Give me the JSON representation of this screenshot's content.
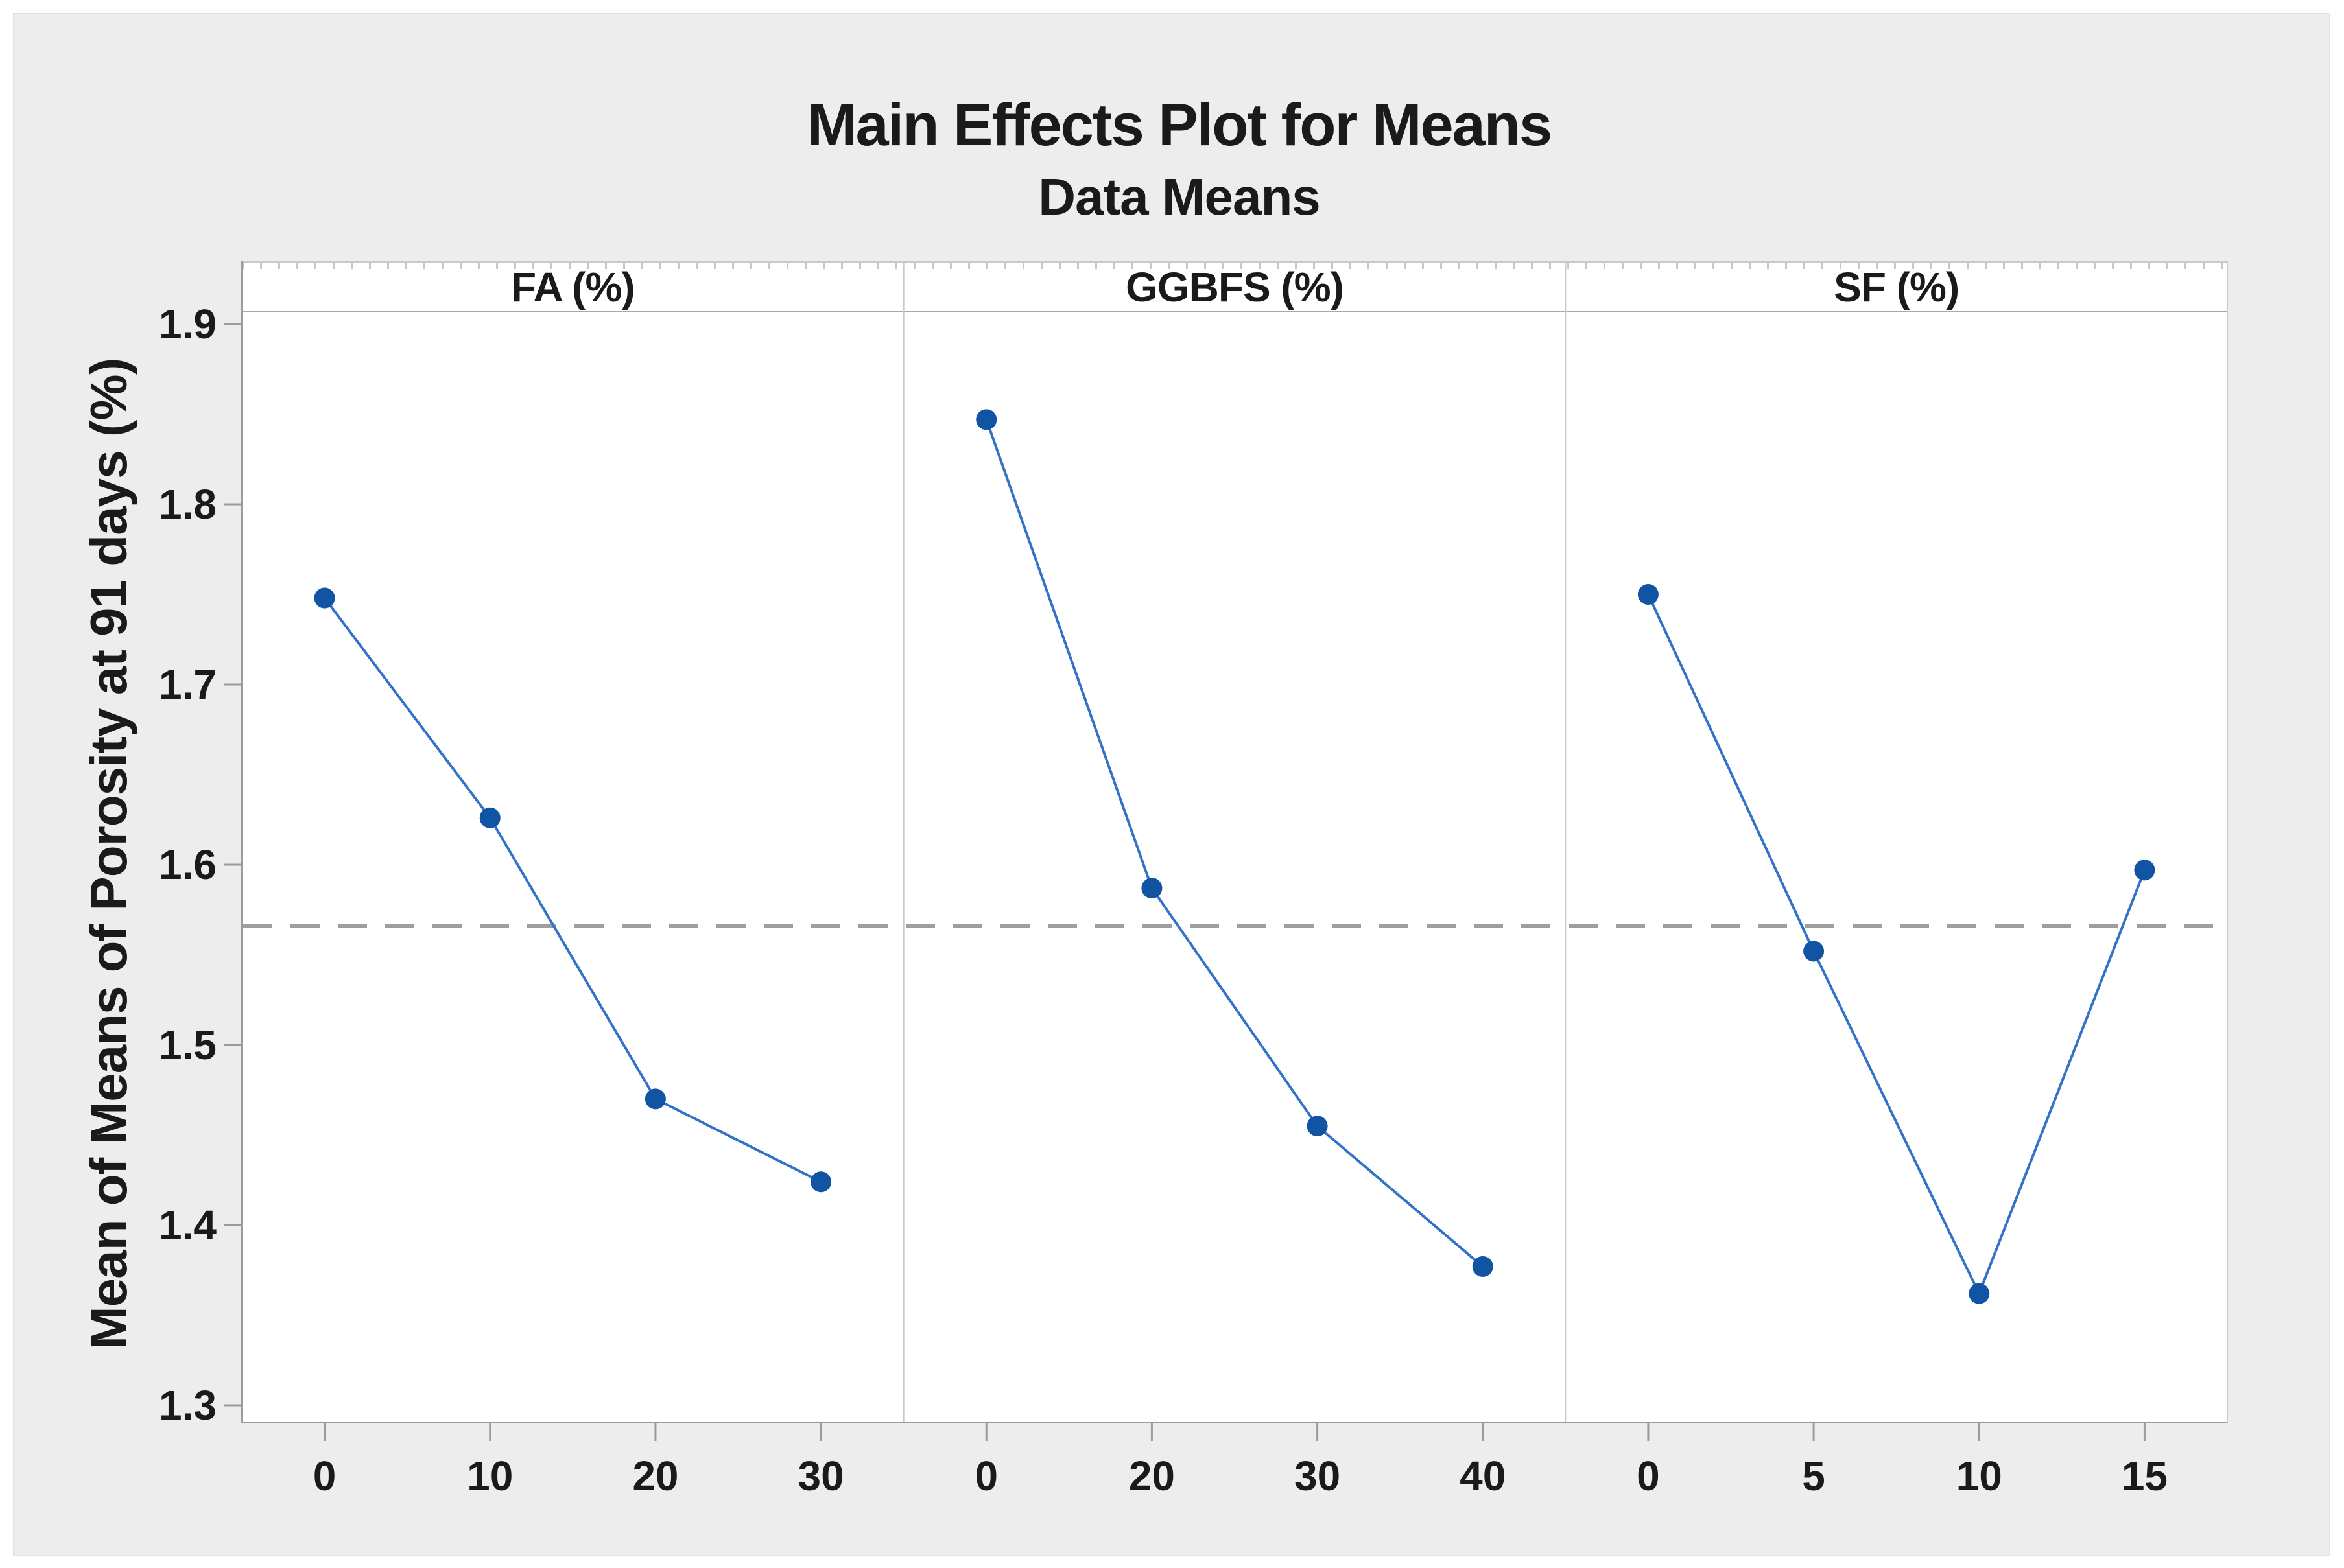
{
  "figure": {
    "background": "#EDEDED",
    "border_color": "#E2E2E2",
    "plot_background": "#FFFFFF"
  },
  "chart_data": {
    "type": "line",
    "title": "Main Effects Plot for Means",
    "subtitle": "Data Means",
    "ylabel": "Mean of Means of Porosity at 91 days (%)",
    "ylim": [
      1.29,
      1.91
    ],
    "ytick_values": [
      1.9,
      1.8,
      1.7,
      1.6,
      1.5,
      1.4,
      1.3
    ],
    "ytick_labels": [
      "1.9",
      "1.8",
      "1.7",
      "1.6",
      "1.5",
      "1.4",
      "1.3"
    ],
    "reference_mean": 1.566,
    "grid": false,
    "legend": "none",
    "panels": [
      {
        "label": "FA (%)",
        "categories": [
          "0",
          "10",
          "20",
          "30"
        ],
        "values": [
          1.748,
          1.626,
          1.47,
          1.424
        ]
      },
      {
        "label": "GGBFS (%)",
        "categories": [
          "0",
          "20",
          "30",
          "40"
        ],
        "values": [
          1.847,
          1.587,
          1.455,
          1.377
        ]
      },
      {
        "label": "SF (%)",
        "categories": [
          "0",
          "5",
          "10",
          "15"
        ],
        "values": [
          1.75,
          1.552,
          1.362,
          1.597
        ]
      }
    ],
    "colors": {
      "series_line": "#3273C8",
      "marker": "#1254A4",
      "reference_line": "#9E9E9E",
      "axis_line": "#9B9B9B",
      "panel_border": "#C9C9C9",
      "text": "#1A1A1A"
    }
  }
}
